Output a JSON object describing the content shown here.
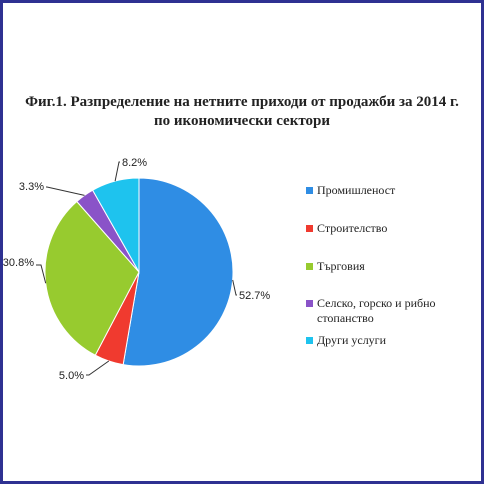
{
  "title_lines": [
    "Фиг.1. Разпределение на нетните приходи от продажби за 2014 г.",
    "по икономически сектори"
  ],
  "chart_data": {
    "type": "pie",
    "title": "Фиг.1. Разпределение на нетните приходи от продажби за 2014 г. по икономически сектори",
    "categories": [
      "Промишленост",
      "Строителство",
      "Търговия",
      "Селско, горско и рибно стопанство",
      "Други услуги"
    ],
    "values": [
      52.7,
      5.0,
      30.8,
      3.3,
      8.2
    ],
    "value_labels": [
      "52.7%",
      "5.0%",
      "30.8%",
      "3.3%",
      "8.2%"
    ],
    "colors": [
      "#2f8de4",
      "#f03a2f",
      "#97cb2f",
      "#8a53c8",
      "#1ec3ee"
    ],
    "start_angle": "12 o'clock",
    "direction": "clockwise",
    "legend_position": "right"
  },
  "legend": [
    {
      "label": "Промишленост",
      "color": "#2f8de4"
    },
    {
      "label": "Строителство",
      "color": "#f03a2f"
    },
    {
      "label": "Търговия",
      "color": "#97cb2f"
    },
    {
      "label": "Селско, горско и рибно стопанство",
      "color": "#8a53c8"
    },
    {
      "label": "Други услуги",
      "color": "#1ec3ee"
    }
  ]
}
